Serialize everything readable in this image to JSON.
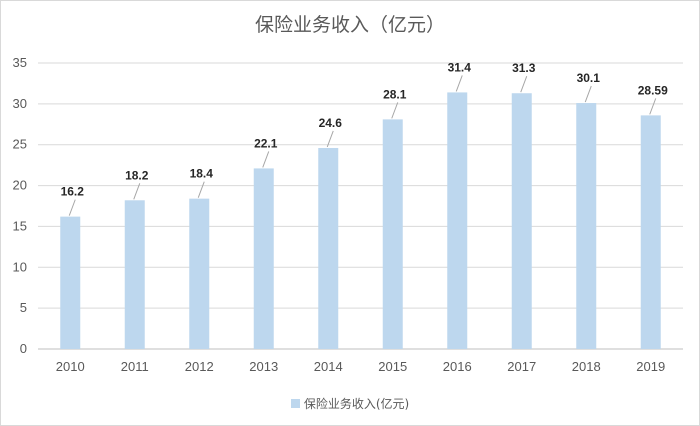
{
  "chart_data": {
    "type": "bar",
    "title": "保险业务收入（亿元）",
    "categories": [
      "2010",
      "2011",
      "2012",
      "2013",
      "2014",
      "2015",
      "2016",
      "2017",
      "2018",
      "2019"
    ],
    "series": [
      {
        "name": "保险业务收入(亿元)",
        "values": [
          16.2,
          18.2,
          18.4,
          22.1,
          24.6,
          28.1,
          31.4,
          31.3,
          30.1,
          28.59
        ],
        "labels": [
          "16.2",
          "18.2",
          "18.4",
          "22.1",
          "24.6",
          "28.1",
          "31.4",
          "31.3",
          "30.1",
          "28.59"
        ],
        "color": "#bdd7ee"
      }
    ],
    "ylim": [
      0,
      35
    ],
    "yticks": [
      "0",
      "5",
      "10",
      "15",
      "20",
      "25",
      "30",
      "35"
    ],
    "grid": true,
    "legend_position": "bottom"
  }
}
